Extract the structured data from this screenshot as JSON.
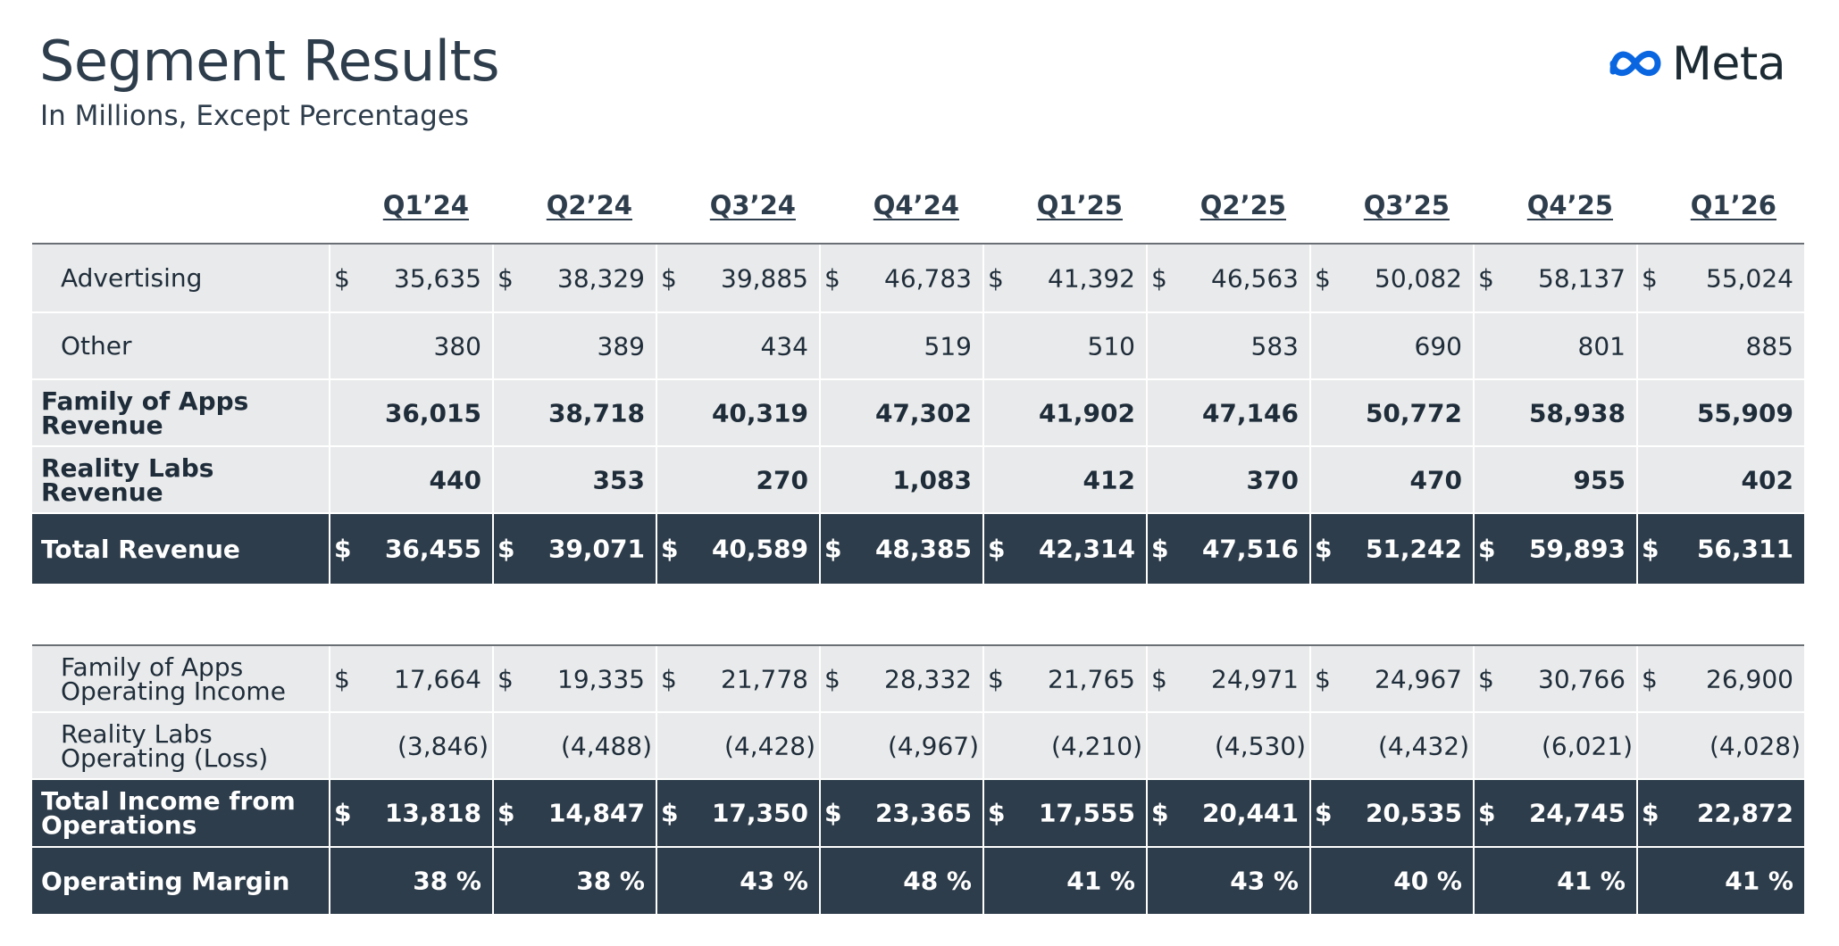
{
  "header": {
    "title": "Segment Results",
    "subtitle": "In Millions, Except Percentages",
    "logo_text": "Meta",
    "logo_icon": "meta-infinity-icon"
  },
  "colors": {
    "dark_row": "#2e3d4b",
    "light_row": "#e9eaeb",
    "logo_blue": "#0a66e0"
  },
  "columns": [
    "Q1’24",
    "Q2’24",
    "Q3’24",
    "Q4’24",
    "Q1’25",
    "Q2’25",
    "Q3’25",
    "Q4’25",
    "Q1’26"
  ],
  "table1": [
    {
      "label": "Advertising",
      "style": "light",
      "indent": true,
      "bold": false,
      "dollar": true,
      "values": [
        "35,635",
        "38,329",
        "39,885",
        "46,783",
        "41,392",
        "46,563",
        "50,082",
        "58,137",
        "55,024"
      ]
    },
    {
      "label": "Other",
      "style": "light",
      "indent": true,
      "bold": false,
      "dollar": false,
      "values": [
        "380",
        "389",
        "434",
        "519",
        "510",
        "583",
        "690",
        "801",
        "885"
      ]
    },
    {
      "label": "Family of Apps\nRevenue",
      "style": "light",
      "indent": false,
      "bold": true,
      "dollar": false,
      "values": [
        "36,015",
        "38,718",
        "40,319",
        "47,302",
        "41,902",
        "47,146",
        "50,772",
        "58,938",
        "55,909"
      ]
    },
    {
      "label": "Reality Labs Revenue",
      "style": "light",
      "indent": false,
      "bold": true,
      "dollar": false,
      "values": [
        "440",
        "353",
        "270",
        "1,083",
        "412",
        "370",
        "470",
        "955",
        "402"
      ]
    },
    {
      "label": "Total Revenue",
      "style": "dark",
      "indent": false,
      "bold": true,
      "dollar": true,
      "values": [
        "36,455",
        "39,071",
        "40,589",
        "48,385",
        "42,314",
        "47,516",
        "51,242",
        "59,893",
        "56,311"
      ]
    }
  ],
  "table2": [
    {
      "label": "Family of Apps\nOperating Income",
      "style": "light",
      "indent": true,
      "bold": false,
      "dollar": true,
      "values": [
        "17,664",
        "19,335",
        "21,778",
        "28,332",
        "21,765",
        "24,971",
        "24,967",
        "30,766",
        "26,900"
      ]
    },
    {
      "label": "Reality Labs\nOperating (Loss)",
      "style": "light",
      "indent": true,
      "bold": false,
      "dollar": false,
      "paren": true,
      "values": [
        "(3,846)",
        "(4,488)",
        "(4,428)",
        "(4,967)",
        "(4,210)",
        "(4,530)",
        "(4,432)",
        "(6,021)",
        "(4,028)"
      ]
    },
    {
      "label": "Total Income from\nOperations",
      "style": "dark",
      "indent": false,
      "bold": true,
      "dollar": true,
      "values": [
        "13,818",
        "14,847",
        "17,350",
        "23,365",
        "17,555",
        "20,441",
        "20,535",
        "24,745",
        "22,872"
      ]
    },
    {
      "label": "Operating Margin",
      "style": "dark",
      "indent": false,
      "bold": true,
      "dollar": false,
      "values": [
        "38 %",
        "38 %",
        "43 %",
        "48 %",
        "41 %",
        "43 %",
        "40 %",
        "41 %",
        "41 %"
      ]
    }
  ]
}
